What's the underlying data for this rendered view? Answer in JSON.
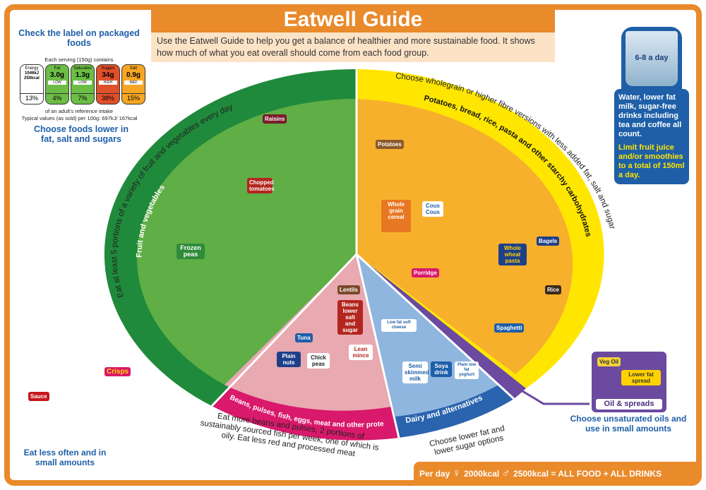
{
  "header": {
    "title": "Eatwell Guide",
    "intro": "Use the Eatwell Guide to help you get a balance of healthier and more sustainable food. It shows how much of what you eat overall should come from each food group."
  },
  "label_panel": {
    "heading": "Check the label on packaged foods",
    "serving": "Each serving (150g) contains",
    "nutrients": [
      {
        "name": "Energy",
        "value": "1046kJ 250kcal",
        "level": "",
        "percent": "13%",
        "color": "#ffffff"
      },
      {
        "name": "Fat",
        "value": "3.0g",
        "level": "LOW",
        "percent": "4%",
        "color": "#6cbd45"
      },
      {
        "name": "Saturates",
        "value": "1.3g",
        "level": "LOW",
        "percent": "7%",
        "color": "#6cbd45"
      },
      {
        "name": "Sugars",
        "value": "34g",
        "level": "HIGH",
        "percent": "38%",
        "color": "#e0502a"
      },
      {
        "name": "Salt",
        "value": "0.9g",
        "level": "MED",
        "percent": "15%",
        "color": "#f6a623"
      }
    ],
    "reference": "of an adult's reference intake",
    "typical": "Typical values (as sold) per 100g: 697kJ/ 167kcal",
    "advice": "Choose foods lower in fat, salt and sugars"
  },
  "drinks": {
    "glass": "6-8 a day",
    "text": "Water, lower fat milk, sugar-free drinks including tea and coffee all count.",
    "limit": "Limit fruit juice and/or smoothies to a total of 150ml a day."
  },
  "groups": {
    "fruit_veg": {
      "band": "Fruit and vegetables",
      "advice": "Eat at least 5 portions of a variety of fruit and vegetables every day",
      "color": "#2e8b3a",
      "items": [
        "Raisins",
        "Chopped tomatoes",
        "Frozen peas"
      ]
    },
    "starchy": {
      "band": "Potatoes, bread, rice, pasta and other starchy carbohydrates",
      "advice": "Choose wholegrain or higher fibre versions with less added fat, salt and sugar",
      "color": "#f7b02c",
      "items": [
        "Potatoes",
        "Whole grain cereal",
        "Cous Cous",
        "Porridge",
        "Whole wheat pasta",
        "Bagels",
        "Rice",
        "Spaghetti"
      ]
    },
    "protein": {
      "band": "Beans, pulses, fish, eggs, meat and other proteins",
      "advice": "Eat more beans and pulses, 2 portions of sustainably sourced fish per week, one of which is oily. Eat less red and processed meat",
      "color": "#e8a9b1",
      "items": [
        "Lentils",
        "Beans lower salt and sugar",
        "Tuna",
        "Plain nuts",
        "Chick peas",
        "Lean mince"
      ]
    },
    "dairy": {
      "band": "Dairy and alternatives",
      "advice": "Choose lower fat and lower sugar options",
      "color": "#3d7fc4",
      "items": [
        "Low fat soft cheese",
        "Semi skimmed milk",
        "Soya drink",
        "Plain low fat yoghurt"
      ]
    },
    "oils": {
      "band": "Oil & spreads",
      "advice": "Choose unsaturated oils and use in small amounts",
      "color": "#6b4aa0",
      "items": [
        "Veg Oil",
        "Lower fat spread"
      ]
    }
  },
  "treats": {
    "items": [
      "Sauce",
      "Crisps"
    ],
    "advice": "Eat less often and in small amounts"
  },
  "footer": {
    "per_day": "Per day",
    "women": "2000kcal",
    "men": "2500kcal = ALL FOOD + ALL DRINKS"
  }
}
